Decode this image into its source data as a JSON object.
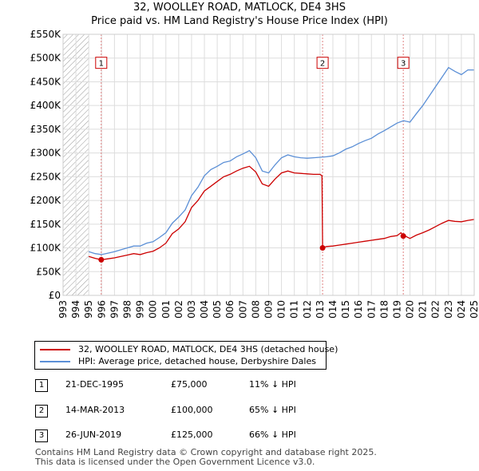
{
  "chart_data": {
    "type": "line",
    "title": "32, WOOLLEY ROAD, MATLOCK, DE4 3HS",
    "subtitle": "Price paid vs. HM Land Registry's House Price Index (HPI)",
    "xlabel": "",
    "ylabel": "",
    "xlim": [
      1993,
      2025
    ],
    "ylim": [
      0,
      550000
    ],
    "y_ticks": [
      0,
      50000,
      100000,
      150000,
      200000,
      250000,
      300000,
      350000,
      400000,
      450000,
      500000,
      550000
    ],
    "y_tick_labels": [
      "£0",
      "£50K",
      "£100K",
      "£150K",
      "£200K",
      "£250K",
      "£300K",
      "£350K",
      "£400K",
      "£450K",
      "£500K",
      "£550K"
    ],
    "x_ticks": [
      1993,
      1994,
      1995,
      1996,
      1997,
      1998,
      1999,
      2000,
      2001,
      2002,
      2003,
      2004,
      2005,
      2006,
      2007,
      2008,
      2009,
      2010,
      2011,
      2012,
      2013,
      2014,
      2015,
      2016,
      2017,
      2018,
      2019,
      2020,
      2021,
      2022,
      2023,
      2024,
      2025
    ],
    "x_tick_labels": [
      "1993",
      "1994",
      "1995",
      "1996",
      "1997",
      "1998",
      "1999",
      "2000",
      "2001",
      "2002",
      "2003",
      "2004",
      "2005",
      "2006",
      "2007",
      "2008",
      "2009",
      "2010",
      "2011",
      "2012",
      "2013",
      "2014",
      "2015",
      "2016",
      "2017",
      "2018",
      "2019",
      "2020",
      "2021",
      "2022",
      "2023",
      "2024",
      "2025"
    ],
    "grid": true,
    "hatched_range": [
      1993,
      1995.0
    ],
    "series": [
      {
        "name": "32, WOOLLEY ROAD, MATLOCK, DE4 3HS (detached house)",
        "color": "#cc0000",
        "x": [
          1995.0,
          1995.5,
          1995.97,
          1996.5,
          1997.0,
          1997.5,
          1998.0,
          1998.5,
          1999.0,
          1999.5,
          2000.0,
          2000.5,
          2001.0,
          2001.5,
          2002.0,
          2002.5,
          2003.0,
          2003.5,
          2004.0,
          2004.5,
          2005.0,
          2005.5,
          2006.0,
          2006.5,
          2007.0,
          2007.5,
          2008.0,
          2008.5,
          2009.0,
          2009.5,
          2010.0,
          2010.5,
          2011.0,
          2011.5,
          2012.0,
          2012.5,
          2013.0,
          2013.15,
          2013.2,
          2013.5,
          2014.0,
          2014.5,
          2015.0,
          2015.5,
          2016.0,
          2016.5,
          2017.0,
          2017.5,
          2018.0,
          2018.5,
          2019.0,
          2019.3,
          2019.48,
          2019.7,
          2020.0,
          2020.5,
          2021.0,
          2021.5,
          2022.0,
          2022.5,
          2023.0,
          2023.5,
          2024.0,
          2024.5,
          2025.0
        ],
        "values": [
          82000,
          78000,
          75000,
          77000,
          79000,
          82000,
          85000,
          88000,
          86000,
          90000,
          93000,
          100000,
          110000,
          130000,
          140000,
          155000,
          185000,
          200000,
          220000,
          230000,
          240000,
          250000,
          255000,
          262000,
          268000,
          272000,
          260000,
          235000,
          230000,
          245000,
          258000,
          262000,
          258000,
          257000,
          256000,
          255000,
          255000,
          252000,
          100000,
          103000,
          104000,
          106000,
          108000,
          110000,
          112000,
          114000,
          116000,
          118000,
          120000,
          124000,
          126000,
          132000,
          125000,
          124000,
          120000,
          127000,
          132000,
          138000,
          145000,
          152000,
          158000,
          156000,
          155000,
          158000,
          160000
        ]
      },
      {
        "name": "HPI: Average price, detached house, Derbyshire Dales",
        "color": "#5b8fd6",
        "x": [
          1995.0,
          1995.5,
          1996.0,
          1996.5,
          1997.0,
          1997.5,
          1998.0,
          1998.5,
          1999.0,
          1999.5,
          2000.0,
          2000.5,
          2001.0,
          2001.5,
          2002.0,
          2002.5,
          2003.0,
          2003.5,
          2004.0,
          2004.5,
          2005.0,
          2005.5,
          2006.0,
          2006.5,
          2007.0,
          2007.5,
          2008.0,
          2008.5,
          2009.0,
          2009.5,
          2010.0,
          2010.5,
          2011.0,
          2011.5,
          2012.0,
          2012.5,
          2013.0,
          2013.5,
          2014.0,
          2014.5,
          2015.0,
          2015.5,
          2016.0,
          2016.5,
          2017.0,
          2017.5,
          2018.0,
          2018.5,
          2019.0,
          2019.5,
          2020.0,
          2020.5,
          2021.0,
          2021.5,
          2022.0,
          2022.5,
          2023.0,
          2023.5,
          2024.0,
          2024.5,
          2025.0
        ],
        "values": [
          92000,
          88000,
          86000,
          89000,
          92000,
          96000,
          100000,
          104000,
          104000,
          110000,
          113000,
          122000,
          132000,
          152000,
          165000,
          180000,
          210000,
          228000,
          252000,
          265000,
          272000,
          280000,
          283000,
          292000,
          298000,
          305000,
          290000,
          262000,
          258000,
          275000,
          290000,
          296000,
          292000,
          290000,
          289000,
          290000,
          291000,
          292000,
          294000,
          300000,
          308000,
          313000,
          320000,
          326000,
          331000,
          340000,
          347000,
          355000,
          363000,
          368000,
          365000,
          383000,
          400000,
          420000,
          440000,
          460000,
          480000,
          472000,
          465000,
          475000,
          475000
        ]
      }
    ],
    "sales": [
      {
        "n": "1",
        "x": 1995.97,
        "y": 75000
      },
      {
        "n": "2",
        "x": 2013.2,
        "y": 100000
      },
      {
        "n": "3",
        "x": 2019.48,
        "y": 125000
      }
    ],
    "annotation_marker_y": 490000
  },
  "legend": {
    "items": [
      {
        "label": "32, WOOLLEY ROAD, MATLOCK, DE4 3HS (detached house)",
        "color": "#cc0000"
      },
      {
        "label": "HPI: Average price, detached house, Derbyshire Dales",
        "color": "#5b8fd6"
      }
    ]
  },
  "transactions": [
    {
      "num": "1",
      "date": "21-DEC-1995",
      "price": "£75,000",
      "hpi": "11% ↓ HPI"
    },
    {
      "num": "2",
      "date": "14-MAR-2013",
      "price": "£100,000",
      "hpi": "65% ↓ HPI"
    },
    {
      "num": "3",
      "date": "26-JUN-2019",
      "price": "£125,000",
      "hpi": "66% ↓ HPI"
    }
  ],
  "footer": {
    "line1": "Contains HM Land Registry data © Crown copyright and database right 2025.",
    "line2": "This data is licensed under the Open Government Licence v3.0."
  }
}
